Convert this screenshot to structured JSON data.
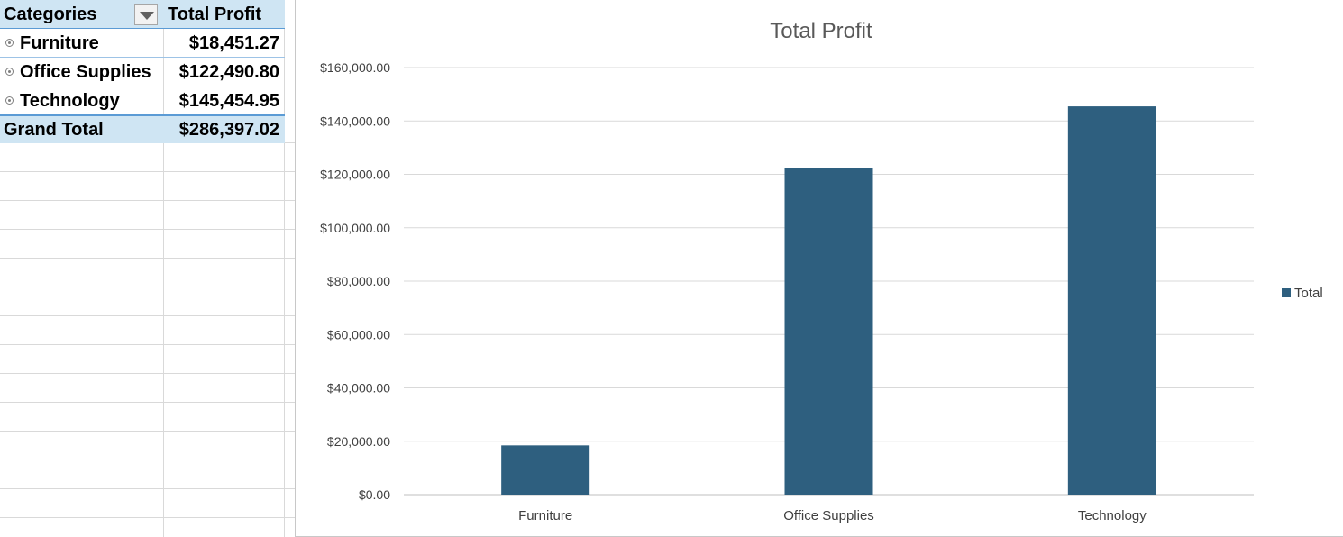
{
  "pivot_table": {
    "header": {
      "row_label": "Categories",
      "value_label": "Total Profit"
    },
    "rows": [
      {
        "label": "Furniture",
        "value": "$18,451.27"
      },
      {
        "label": "Office Supplies",
        "value": "$122,490.80"
      },
      {
        "label": "Technology",
        "value": "$145,454.95"
      }
    ],
    "grand_total": {
      "label": "Grand Total",
      "value": "$286,397.02"
    }
  },
  "chart_data": {
    "type": "bar",
    "title": "Total Profit",
    "categories": [
      "Furniture",
      "Office Supplies",
      "Technology"
    ],
    "series": [
      {
        "name": "Total",
        "values": [
          18451.27,
          122490.8,
          145454.95
        ],
        "color": "#2e5f7f"
      }
    ],
    "ylim": [
      0,
      160000
    ],
    "yticks": [
      0,
      20000,
      40000,
      60000,
      80000,
      100000,
      120000,
      140000,
      160000
    ],
    "ytick_labels": [
      "$0.00",
      "$20,000.00",
      "$40,000.00",
      "$60,000.00",
      "$80,000.00",
      "$100,000.00",
      "$120,000.00",
      "$140,000.00",
      "$160,000.00"
    ],
    "grid": true,
    "legend_position": "right"
  },
  "colors": {
    "header_fill": "#cfe5f3",
    "header_border": "#5b9bd5",
    "bar": "#2e5f7f"
  }
}
